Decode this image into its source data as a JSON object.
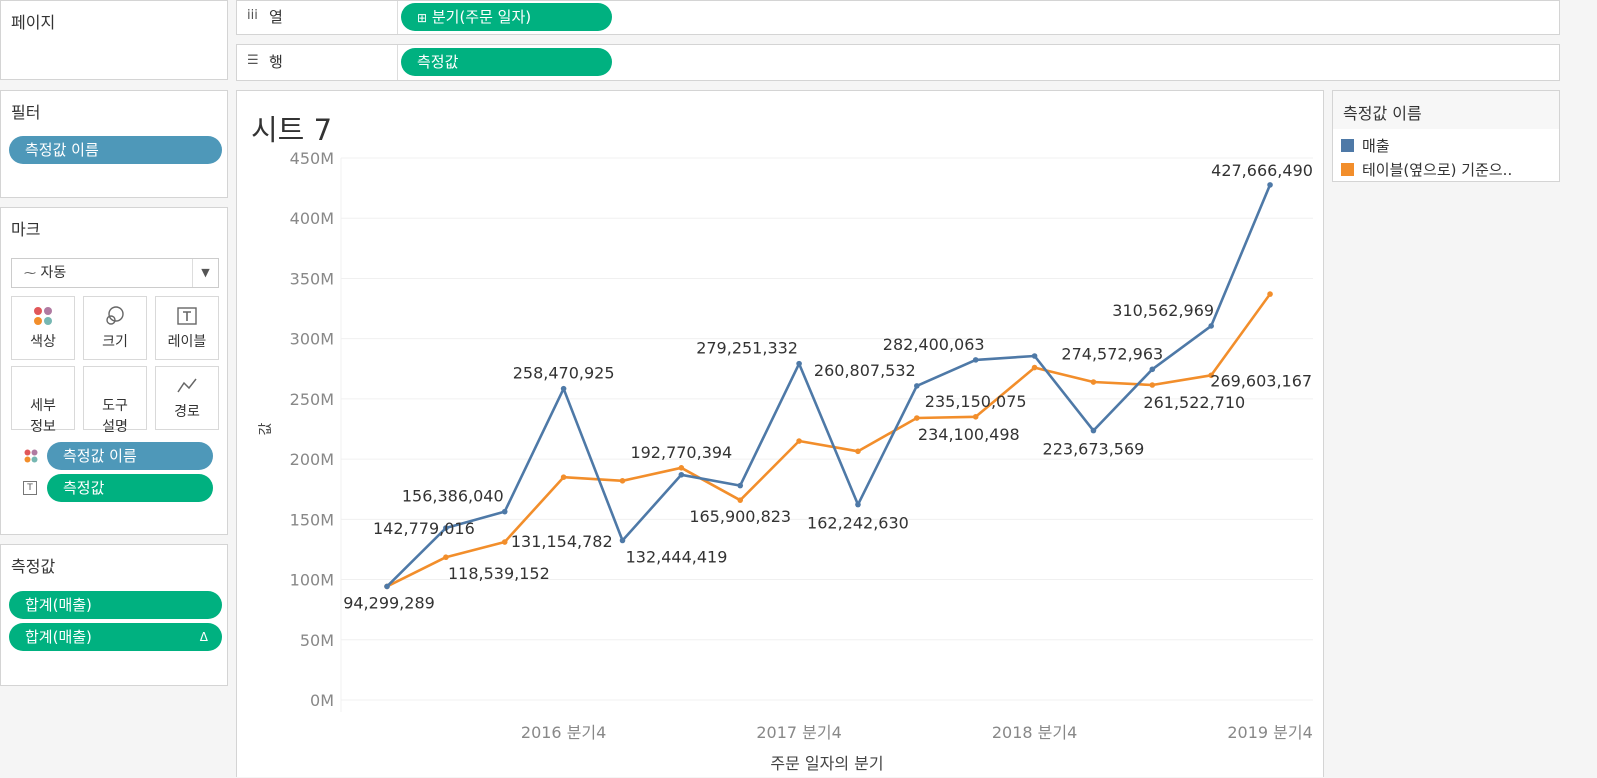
{
  "left": {
    "pages_title": "페이지",
    "filters_title": "필터",
    "filter_pill": "측정값 이름",
    "marks_title": "마크",
    "mark_type": "자동",
    "mark_buttons": [
      "색상",
      "크기",
      "레이블",
      "세부\n정보",
      "도구\n설명",
      "경로"
    ],
    "mark_pills": [
      "측정값 이름",
      "측정값"
    ],
    "measures_title": "측정값",
    "measure_pills": [
      "합계(매출)",
      "합계(매출)"
    ],
    "measure_delta": "Δ"
  },
  "shelves": {
    "columns_label": "열",
    "columns_pill": "분기(주문 일자)",
    "rows_label": "행",
    "rows_pill": "측정값"
  },
  "sheet_title": "시트 7",
  "legend": {
    "title": "측정값 이름",
    "items": [
      {
        "label": "매출",
        "color": "#4e79a7"
      },
      {
        "label": "테이블(옆으로) 기준으..",
        "color": "#f28e2b"
      }
    ]
  },
  "chart_data": {
    "type": "line",
    "title": "시트 7",
    "xlabel": "주문 일자의 분기",
    "ylabel": "값",
    "ylim": [
      0,
      450000000
    ],
    "y_ticks": [
      "0M",
      "50M",
      "100M",
      "150M",
      "200M",
      "250M",
      "300M",
      "350M",
      "400M",
      "450M"
    ],
    "x_tick_labels": [
      "2016 분기4",
      "2017 분기4",
      "2018 분기4",
      "2019 분기4"
    ],
    "categories": [
      "2016 분기1",
      "2016 분기2",
      "2016 분기3",
      "2016 분기4",
      "2017 분기1",
      "2017 분기2",
      "2017 분기3",
      "2017 분기4",
      "2018 분기1",
      "2018 분기2",
      "2018 분기3",
      "2018 분기4",
      "2019 분기1",
      "2019 분기2",
      "2019 분기3",
      "2019 분기4"
    ],
    "series": [
      {
        "name": "매출",
        "color": "#4e79a7",
        "values": [
          94299289,
          142779016,
          156386040,
          258470925,
          132444419,
          187000000,
          178000000,
          279251332,
          162242630,
          260807532,
          282400063,
          285600000,
          223673569,
          274572963,
          310562969,
          427666490
        ]
      },
      {
        "name": "테이블(옆으로) 기준으..",
        "color": "#f28e2b",
        "values": [
          94299289,
          118539152,
          131154782,
          185000000,
          182000000,
          192770394,
          165900823,
          215000000,
          206500000,
          234100498,
          235150075,
          276000000,
          264000000,
          261522710,
          269603167,
          337000000
        ]
      }
    ],
    "labels": [
      {
        "series": 0,
        "index": 0,
        "text": "94,299,289",
        "dx": 2,
        "dy": 22
      },
      {
        "series": 0,
        "index": 1,
        "text": "142,779,016",
        "dx": -22,
        "dy": 6
      },
      {
        "series": 0,
        "index": 2,
        "text": "156,386,040",
        "dx": -52,
        "dy": -10
      },
      {
        "series": 0,
        "index": 3,
        "text": "258,470,925",
        "dx": 0,
        "dy": -10
      },
      {
        "series": 0,
        "index": 4,
        "text": "132,444,419",
        "dx": 54,
        "dy": 22
      },
      {
        "series": 1,
        "index": 1,
        "text": "118,539,152",
        "dx": 53,
        "dy": 22
      },
      {
        "series": 1,
        "index": 2,
        "text": "131,154,782",
        "dx": 57,
        "dy": 5
      },
      {
        "series": 1,
        "index": 5,
        "text": "192,770,394",
        "dx": 0,
        "dy": -10
      },
      {
        "series": 1,
        "index": 6,
        "text": "165,900,823",
        "dx": 0,
        "dy": 22
      },
      {
        "series": 0,
        "index": 7,
        "text": "279,251,332",
        "dx": -52,
        "dy": -10
      },
      {
        "series": 0,
        "index": 8,
        "text": "162,242,630",
        "dx": 0,
        "dy": 24
      },
      {
        "series": 0,
        "index": 9,
        "text": "260,807,532",
        "dx": -52,
        "dy": -10
      },
      {
        "series": 0,
        "index": 10,
        "text": "282,400,063",
        "dx": -42,
        "dy": -10
      },
      {
        "series": 1,
        "index": 9,
        "text": "234,100,498",
        "dx": 52,
        "dy": 22
      },
      {
        "series": 1,
        "index": 10,
        "text": "235,150,075",
        "dx": 0,
        "dy": -10
      },
      {
        "series": 0,
        "index": 12,
        "text": "223,673,569",
        "dx": 0,
        "dy": 24
      },
      {
        "series": 0,
        "index": 13,
        "text": "274,572,963",
        "dx": -40,
        "dy": -10
      },
      {
        "series": 0,
        "index": 14,
        "text": "310,562,969",
        "dx": -48,
        "dy": -10
      },
      {
        "series": 1,
        "index": 13,
        "text": "261,522,710",
        "dx": 42,
        "dy": 23
      },
      {
        "series": 1,
        "index": 14,
        "text": "269,603,167",
        "dx": 50,
        "dy": 11
      },
      {
        "series": 0,
        "index": 15,
        "text": "427,666,490",
        "dx": -8,
        "dy": -9
      }
    ]
  }
}
